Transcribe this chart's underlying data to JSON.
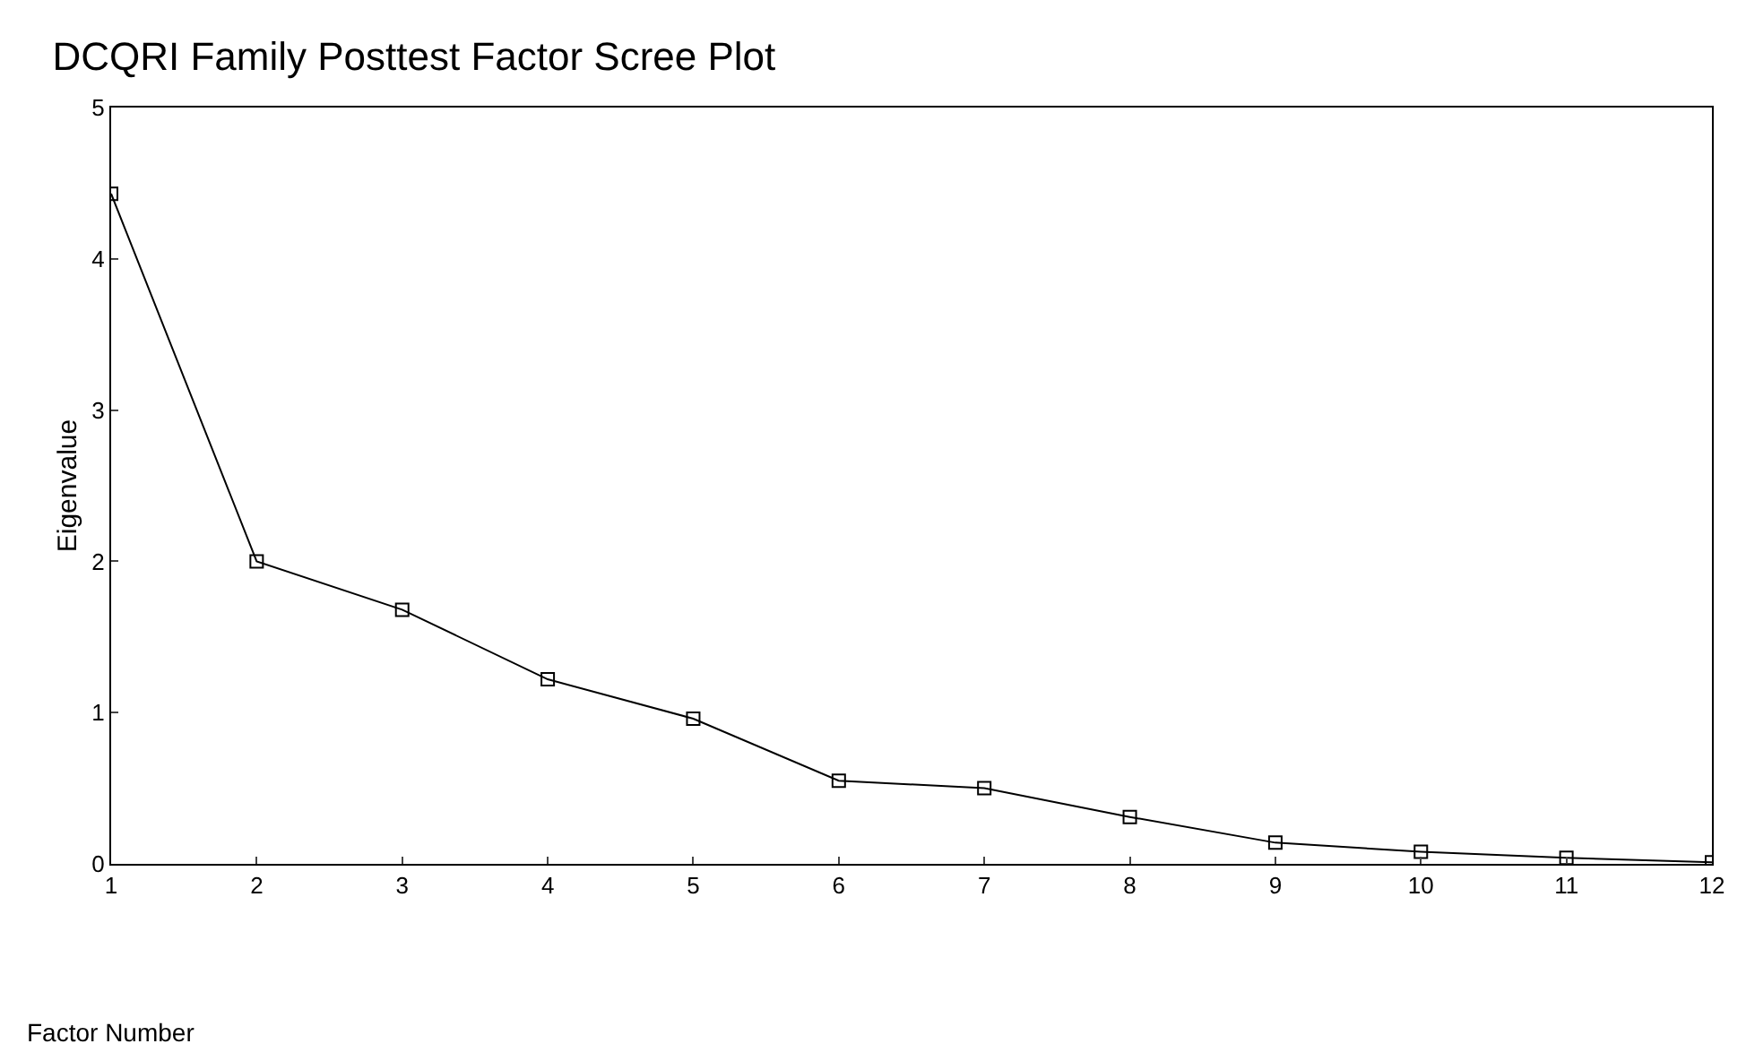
{
  "chart_data": {
    "type": "line",
    "title": "DCQRI Family Posttest Factor Scree Plot",
    "xlabel": "Factor Number",
    "ylabel": "Eigenvalue",
    "x": [
      1,
      2,
      3,
      4,
      5,
      6,
      7,
      8,
      9,
      10,
      11,
      12
    ],
    "series": [
      {
        "color": "#000000",
        "values": [
          4.43,
          2.0,
          1.68,
          1.22,
          0.96,
          0.55,
          0.5,
          0.31,
          0.14,
          0.08,
          0.04,
          0.01
        ]
      }
    ],
    "xlim": [
      1,
      12
    ],
    "xticks": [
      1,
      2,
      3,
      4,
      5,
      6,
      7,
      8,
      9,
      10,
      11,
      12
    ],
    "ylim": [
      0,
      5
    ],
    "yticks": [
      0,
      1,
      2,
      3,
      4,
      5
    ],
    "marker": "square",
    "line_style": "solid"
  }
}
